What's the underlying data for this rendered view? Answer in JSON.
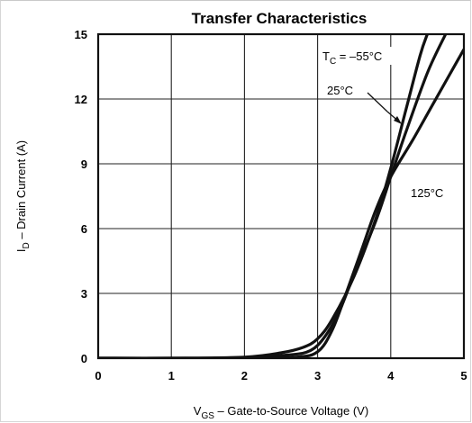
{
  "chart_data": {
    "type": "line",
    "title": "Transfer Characteristics",
    "xlabel": {
      "main": "V",
      "sub": "GS",
      "rest": "  –  Gate-to-Source Voltage (V)"
    },
    "ylabel": {
      "main": "I",
      "sub": "D",
      "rest": "  –  Drain Current (A)"
    },
    "xlim": [
      0,
      5
    ],
    "ylim": [
      0,
      15
    ],
    "xticks": [
      "0",
      "1",
      "2",
      "3",
      "4",
      "5"
    ],
    "yticks": [
      "0",
      "3",
      "6",
      "9",
      "12",
      "15"
    ],
    "grid": true,
    "series": [
      {
        "name": "T_C = –55°C",
        "x": [
          0,
          1,
          2,
          2.5,
          2.8,
          3.0,
          3.2,
          3.5,
          3.8,
          4.0,
          4.2,
          4.4,
          4.5
        ],
        "y": [
          0,
          0,
          0.05,
          0.25,
          0.5,
          0.9,
          1.8,
          3.8,
          6.5,
          8.8,
          11.4,
          14.0,
          15.0
        ]
      },
      {
        "name": "25°C",
        "x": [
          0,
          1,
          2,
          2.6,
          2.9,
          3.1,
          3.3,
          3.5,
          3.8,
          4.0,
          4.2,
          4.5,
          4.75
        ],
        "y": [
          0,
          0,
          0.02,
          0.15,
          0.35,
          1.0,
          2.2,
          3.9,
          6.4,
          8.4,
          10.4,
          13.2,
          15.0
        ]
      },
      {
        "name": "125°C",
        "x": [
          0,
          1,
          2,
          2.7,
          3.0,
          3.2,
          3.4,
          3.6,
          3.8,
          4.0,
          4.3,
          4.6,
          5.0
        ],
        "y": [
          0,
          0,
          0.0,
          0.05,
          0.3,
          1.3,
          3.1,
          5.0,
          6.9,
          8.4,
          10.1,
          11.9,
          14.3
        ]
      }
    ],
    "annotations": {
      "tc_label": {
        "main": "T",
        "sub": "C",
        "rest": " = –55°C"
      },
      "label_25": "25°C",
      "label_125": "125°C"
    }
  }
}
